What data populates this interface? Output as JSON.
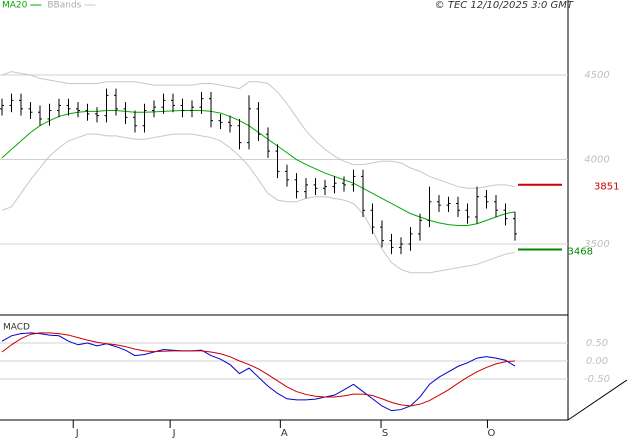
{
  "chart_data": [
    {
      "type": "ohlc",
      "legend": "top-left",
      "grid": true,
      "note": "© TEC 12/10/2025 3:0 GMT",
      "xlim": [
        -0.21,
        59.58
      ],
      "xticks": [
        {
          "value": 7.5,
          "label": "J"
        },
        {
          "value": 17.7,
          "label": "J"
        },
        {
          "value": 29.3,
          "label": "A"
        },
        {
          "value": 39.9,
          "label": "S"
        },
        {
          "value": 51.1,
          "label": "O"
        }
      ],
      "ylim": [
        3086,
        4944
      ],
      "yticks": [
        3500,
        4000,
        4500
      ],
      "color": "#000000",
      "open": [
        4300,
        4320,
        4350,
        4300,
        4280,
        4240,
        4290,
        4320,
        4300,
        4290,
        4270,
        4260,
        4380,
        4300,
        4250,
        4200,
        4290,
        4310,
        4350,
        4320,
        4290,
        4310,
        4360,
        4230,
        4220,
        4200,
        4100,
        4300,
        4150,
        4050,
        3930,
        3880,
        3810,
        3850,
        3830,
        3840,
        3860,
        3850,
        3900,
        3700,
        3600,
        3520,
        3480,
        3500,
        3560,
        3640,
        3750,
        3730,
        3740,
        3700,
        3660,
        3780,
        3750,
        3700,
        3650
      ],
      "high": [
        4360,
        4390,
        4390,
        4340,
        4320,
        4330,
        4360,
        4360,
        4340,
        4330,
        4310,
        4420,
        4420,
        4340,
        4290,
        4330,
        4350,
        4390,
        4390,
        4360,
        4350,
        4400,
        4400,
        4270,
        4260,
        4240,
        4380,
        4340,
        4190,
        4090,
        3970,
        3920,
        3890,
        3890,
        3880,
        3900,
        3900,
        3940,
        3940,
        3740,
        3640,
        3560,
        3540,
        3600,
        3680,
        3840,
        3790,
        3780,
        3780,
        3740,
        3840,
        3820,
        3790,
        3740,
        3690
      ],
      "low": [
        4260,
        4280,
        4260,
        4240,
        4200,
        4200,
        4250,
        4260,
        4250,
        4230,
        4220,
        4220,
        4260,
        4210,
        4160,
        4160,
        4250,
        4270,
        4280,
        4250,
        4250,
        4270,
        4190,
        4180,
        4160,
        4060,
        4060,
        4110,
        4010,
        3890,
        3840,
        3770,
        3770,
        3790,
        3790,
        3800,
        3810,
        3810,
        3660,
        3560,
        3480,
        3440,
        3440,
        3460,
        3520,
        3600,
        3690,
        3690,
        3660,
        3620,
        3620,
        3710,
        3660,
        3610,
        3520
      ],
      "close": [
        4320,
        4350,
        4300,
        4280,
        4240,
        4290,
        4320,
        4300,
        4290,
        4270,
        4260,
        4380,
        4300,
        4250,
        4200,
        4290,
        4310,
        4350,
        4320,
        4290,
        4310,
        4360,
        4230,
        4220,
        4200,
        4100,
        4300,
        4150,
        4050,
        3930,
        3880,
        3810,
        3850,
        3830,
        3840,
        3860,
        3850,
        3900,
        3700,
        3600,
        3520,
        3480,
        3500,
        3560,
        3640,
        3750,
        3730,
        3740,
        3700,
        3660,
        3780,
        3750,
        3700,
        3650,
        3560
      ],
      "series": [
        {
          "name": "MA20",
          "color": "#00aa00",
          "values": [
            4010,
            4060,
            4110,
            4160,
            4200,
            4230,
            4255,
            4270,
            4280,
            4285,
            4285,
            4290,
            4290,
            4285,
            4280,
            4280,
            4282,
            4285,
            4288,
            4290,
            4290,
            4290,
            4285,
            4275,
            4255,
            4230,
            4200,
            4160,
            4120,
            4080,
            4040,
            4000,
            3970,
            3945,
            3920,
            3900,
            3880,
            3860,
            3830,
            3800,
            3770,
            3740,
            3710,
            3680,
            3660,
            3640,
            3625,
            3615,
            3610,
            3610,
            3620,
            3640,
            3660,
            3680,
            3690
          ]
        },
        {
          "name": "BBands",
          "color": "#c8c8c8",
          "values": [
            4500,
            4520,
            4510,
            4500,
            4480,
            4470,
            4460,
            4450,
            4450,
            4450,
            4450,
            4460,
            4460,
            4460,
            4460,
            4450,
            4440,
            4440,
            4440,
            4440,
            4440,
            4450,
            4450,
            4440,
            4430,
            4420,
            4460,
            4460,
            4450,
            4400,
            4330,
            4250,
            4170,
            4110,
            4060,
            4020,
            3990,
            3970,
            3970,
            3980,
            3990,
            3990,
            3980,
            3950,
            3930,
            3900,
            3880,
            3860,
            3840,
            3830,
            3830,
            3840,
            3850,
            3850,
            3840
          ],
          "lower": [
            3700,
            3720,
            3800,
            3880,
            3950,
            4020,
            4070,
            4110,
            4130,
            4150,
            4150,
            4140,
            4140,
            4130,
            4120,
            4120,
            4130,
            4140,
            4150,
            4150,
            4150,
            4140,
            4130,
            4110,
            4070,
            4020,
            3960,
            3880,
            3800,
            3760,
            3750,
            3750,
            3770,
            3780,
            3780,
            3770,
            3760,
            3740,
            3680,
            3580,
            3470,
            3390,
            3350,
            3330,
            3330,
            3330,
            3340,
            3350,
            3360,
            3370,
            3380,
            3400,
            3420,
            3440,
            3450
          ]
        }
      ],
      "levels": [
        {
          "value": 3851,
          "color": "#cc0000"
        },
        {
          "value": 3468,
          "color": "#008800"
        }
      ]
    },
    {
      "type": "line",
      "title": "MACD",
      "grid": true,
      "xlim": [
        -0.21,
        59.58
      ],
      "ylim": [
        -1.64,
        1.25
      ],
      "yticks": [
        {
          "value": 0.5,
          "label": "0.50"
        },
        {
          "value": 0,
          "label": "0.00"
        },
        {
          "value": -0.5,
          "label": "-0.50"
        }
      ],
      "series": [
        {
          "color": "#0000cc",
          "values": [
            0.55,
            0.7,
            0.76,
            0.78,
            0.76,
            0.72,
            0.7,
            0.55,
            0.45,
            0.5,
            0.42,
            0.48,
            0.4,
            0.3,
            0.15,
            0.18,
            0.25,
            0.32,
            0.3,
            0.28,
            0.28,
            0.3,
            0.15,
            0.05,
            -0.1,
            -0.35,
            -0.2,
            -0.45,
            -0.7,
            -0.9,
            -1.05,
            -1.08,
            -1.08,
            -1.06,
            -1.0,
            -0.95,
            -0.8,
            -0.65,
            -0.85,
            -1.05,
            -1.25,
            -1.38,
            -1.35,
            -1.25,
            -1.0,
            -0.65,
            -0.45,
            -0.3,
            -0.15,
            -0.05,
            0.08,
            0.12,
            0.08,
            0.02,
            -0.14
          ]
        },
        {
          "color": "#cc0000",
          "values": [
            0.25,
            0.45,
            0.62,
            0.74,
            0.78,
            0.78,
            0.76,
            0.72,
            0.65,
            0.58,
            0.52,
            0.48,
            0.45,
            0.4,
            0.33,
            0.28,
            0.26,
            0.27,
            0.28,
            0.28,
            0.28,
            0.28,
            0.25,
            0.2,
            0.12,
            0.0,
            -0.1,
            -0.22,
            -0.38,
            -0.55,
            -0.72,
            -0.85,
            -0.93,
            -0.98,
            -1.0,
            -1.0,
            -0.97,
            -0.92,
            -0.92,
            -0.96,
            -1.05,
            -1.15,
            -1.22,
            -1.25,
            -1.2,
            -1.1,
            -0.95,
            -0.8,
            -0.62,
            -0.45,
            -0.3,
            -0.18,
            -0.08,
            -0.02,
            0.0
          ]
        }
      ]
    }
  ]
}
